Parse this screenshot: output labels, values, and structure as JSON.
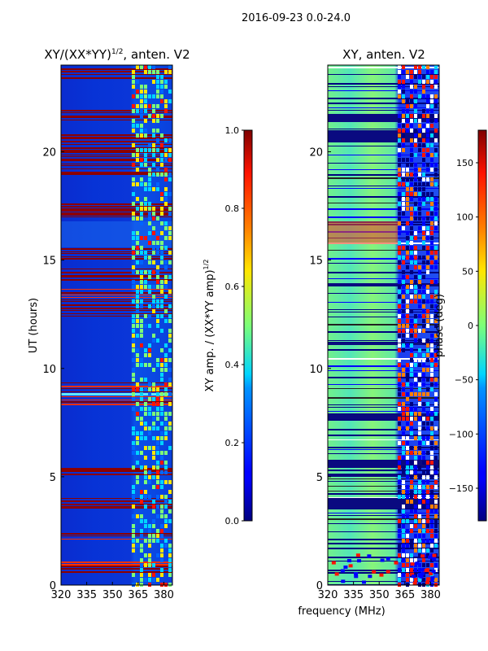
{
  "chart_data": [
    {
      "type": "heatmap",
      "suptitle": "2016-09-23 0.0-24.0",
      "title_main": "XY/(XX*YY)",
      "title_sup": "1/2",
      "title_rest": ", anten. V2",
      "ylabel": "UT (hours)",
      "x_ticks": [
        "320",
        "335",
        "350",
        "365",
        "380"
      ],
      "x_tick_values": [
        320,
        335,
        350,
        365,
        380
      ],
      "xlim": [
        320,
        385
      ],
      "y_ticks": [
        "0",
        "5",
        "10",
        "15",
        "20"
      ],
      "y_tick_values": [
        0,
        5,
        10,
        15,
        20
      ],
      "ylim": [
        0,
        24
      ],
      "colorbar": {
        "label_main": "XY amp. / (XX*YY amp)",
        "label_sup": "1/2",
        "ticks": [
          "0.0",
          "0.2",
          "0.4",
          "0.6",
          "0.8",
          "1.0"
        ],
        "tick_values": [
          0.0,
          0.2,
          0.4,
          0.6,
          0.8,
          1.0
        ],
        "range": [
          0.0,
          1.0
        ],
        "colormap": "jet"
      }
    },
    {
      "type": "heatmap",
      "title": "XY, anten. V2",
      "xlabel": "frequency (MHz)",
      "ylabel": "",
      "x_ticks": [
        "320",
        "335",
        "350",
        "365",
        "380"
      ],
      "x_tick_values": [
        320,
        335,
        350,
        365,
        380
      ],
      "xlim": [
        320,
        385
      ],
      "y_ticks": [
        "0",
        "5",
        "10",
        "15",
        "20"
      ],
      "y_tick_values": [
        0,
        5,
        10,
        15,
        20
      ],
      "ylim": [
        0,
        24
      ],
      "colorbar": {
        "label": "phase (deg)",
        "ticks": [
          "−150",
          "−100",
          "−50",
          "0",
          "50",
          "100",
          "150"
        ],
        "tick_values": [
          -150,
          -100,
          -50,
          0,
          50,
          100,
          150
        ],
        "range": [
          -180,
          180
        ],
        "colormap": "jet"
      }
    }
  ]
}
